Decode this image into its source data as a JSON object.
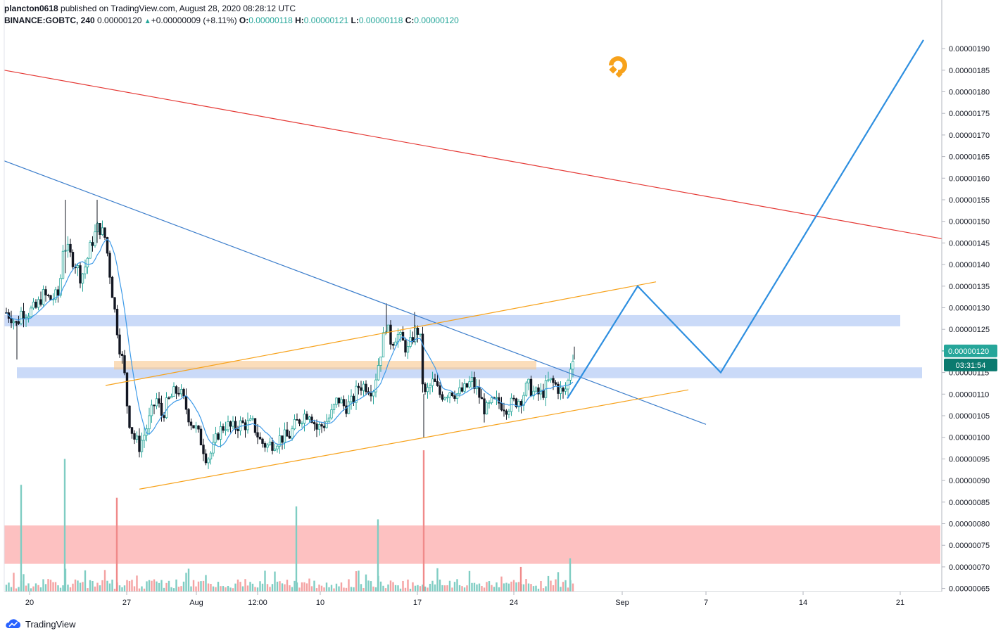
{
  "header": {
    "publisher": "plancton0618",
    "published_text": "published on TradingView.com, August 28, 2020 08:28:12 UTC",
    "symbol": "BINANCE:GOBTC, 240",
    "last": "0.00000120",
    "change": "+0.00000009 (+8.11%)",
    "o_label": "O:",
    "o_value": "0.00000118",
    "h_label": "H:",
    "h_value": "0.00000121",
    "l_label": "L:",
    "l_value": "0.00000118",
    "c_label": "C:",
    "c_value": "0.00000120"
  },
  "price_badge": {
    "value": "0.00000120",
    "countdown": "03:31:54"
  },
  "branding": {
    "label": "TradingView"
  },
  "colors": {
    "up": "#26a69a",
    "down": "#131722",
    "ma": "#3d9ae8",
    "red_trend": "#e53935",
    "blue_trend": "#3b7dcb",
    "orange": "#f7a21b",
    "projection": "#2e8fe0",
    "zone_blue": "#aac4f3",
    "zone_orange": "#f8c890",
    "zone_red": "#fc9b9b"
  },
  "chart_data": {
    "type": "candlestick",
    "y_axis": {
      "ticks": [
        "0.00000190",
        "0.00000185",
        "0.00000180",
        "0.00000175",
        "0.00000170",
        "0.00000165",
        "0.00000160",
        "0.00000155",
        "0.00000150",
        "0.00000145",
        "0.00000140",
        "0.00000135",
        "0.00000130",
        "0.00000125",
        "0.00000120",
        "0.00000115",
        "0.00000110",
        "0.00000105",
        "0.00000100",
        "0.00000095",
        "0.00000090",
        "0.00000085",
        "0.00000080",
        "0.00000075",
        "0.00000070",
        "0.00000065"
      ],
      "range": [
        6.3e-07,
        1.93e-06
      ]
    },
    "x_axis": {
      "ticks": [
        "20",
        "27",
        "Aug",
        "12:00",
        "10",
        "17",
        "24",
        "Sep",
        "7",
        "14",
        "21"
      ]
    },
    "price_path": [
      [
        0,
        1.3
      ],
      [
        8,
        1.29
      ],
      [
        16,
        1.28
      ],
      [
        24,
        1.26
      ],
      [
        30,
        1.29
      ],
      [
        40,
        1.29
      ],
      [
        52,
        1.3
      ],
      [
        60,
        1.33
      ],
      [
        72,
        1.32
      ],
      [
        84,
        1.33
      ],
      [
        90,
        1.45
      ],
      [
        100,
        1.42
      ],
      [
        108,
        1.4
      ],
      [
        115,
        1.37
      ],
      [
        122,
        1.4
      ],
      [
        130,
        1.45
      ],
      [
        140,
        1.49
      ],
      [
        150,
        1.46
      ],
      [
        156,
        1.38
      ],
      [
        164,
        1.28
      ],
      [
        170,
        1.21
      ],
      [
        176,
        1.16
      ],
      [
        182,
        1.05
      ],
      [
        190,
        1.0
      ],
      [
        198,
        0.98
      ],
      [
        206,
        1.01
      ],
      [
        214,
        1.05
      ],
      [
        222,
        1.09
      ],
      [
        230,
        1.05
      ],
      [
        238,
        1.08
      ],
      [
        246,
        1.1
      ],
      [
        254,
        1.11
      ],
      [
        262,
        1.08
      ],
      [
        270,
        1.04
      ],
      [
        278,
        1.02
      ],
      [
        286,
        0.99
      ],
      [
        294,
        0.95
      ],
      [
        302,
        0.97
      ],
      [
        310,
        1.01
      ],
      [
        320,
        1.03
      ],
      [
        330,
        1.02
      ],
      [
        340,
        1.03
      ],
      [
        350,
        1.03
      ],
      [
        360,
        1.03
      ],
      [
        370,
        0.99
      ],
      [
        380,
        0.98
      ],
      [
        390,
        0.99
      ],
      [
        400,
        1.0
      ],
      [
        410,
        1.0
      ],
      [
        420,
        1.03
      ],
      [
        430,
        1.05
      ],
      [
        440,
        1.06
      ],
      [
        450,
        1.02
      ],
      [
        460,
        1.03
      ],
      [
        470,
        1.05
      ],
      [
        480,
        1.09
      ],
      [
        490,
        1.07
      ],
      [
        500,
        1.08
      ],
      [
        510,
        1.12
      ],
      [
        520,
        1.12
      ],
      [
        530,
        1.11
      ],
      [
        540,
        1.19
      ],
      [
        548,
        1.26
      ],
      [
        556,
        1.22
      ],
      [
        564,
        1.24
      ],
      [
        572,
        1.22
      ],
      [
        580,
        1.2
      ],
      [
        588,
        1.24
      ],
      [
        596,
        1.25
      ],
      [
        602,
        1.09
      ],
      [
        608,
        1.11
      ],
      [
        616,
        1.13
      ],
      [
        624,
        1.1
      ],
      [
        632,
        1.1
      ],
      [
        640,
        1.11
      ],
      [
        650,
        1.1
      ],
      [
        660,
        1.11
      ],
      [
        670,
        1.13
      ],
      [
        680,
        1.1
      ],
      [
        690,
        1.06
      ],
      [
        700,
        1.08
      ],
      [
        710,
        1.08
      ],
      [
        720,
        1.07
      ],
      [
        730,
        1.08
      ],
      [
        740,
        1.09
      ],
      [
        750,
        1.12
      ],
      [
        760,
        1.1
      ],
      [
        770,
        1.1
      ],
      [
        780,
        1.13
      ],
      [
        790,
        1.12
      ],
      [
        800,
        1.1
      ],
      [
        806,
        1.12
      ],
      [
        812,
        1.18
      ],
      [
        816,
        1.2
      ]
    ],
    "volume_spikes": [
      [
        30,
        8.9e-07
      ],
      [
        92,
        9.5e-07
      ],
      [
        166,
        8.6e-07
      ],
      [
        421,
        8.4e-07
      ],
      [
        537,
        8.1e-07
      ],
      [
        602,
        9.7e-07
      ],
      [
        740,
        7e-07
      ],
      [
        810,
        7.2e-07
      ]
    ],
    "lines": {
      "red_trend": [
        [
          6,
          1.85
        ],
        [
          1338,
          1.46
        ]
      ],
      "blue_trend": [
        [
          6,
          1.64
        ],
        [
          1003,
          1.03
        ]
      ],
      "orange_upper": [
        [
          150,
          1.12
        ],
        [
          932,
          1.36
        ]
      ],
      "orange_lower": [
        [
          198,
          0.88
        ],
        [
          978,
          1.11
        ]
      ],
      "projection": [
        [
          806,
          1.09
        ],
        [
          906,
          1.35
        ],
        [
          1024,
          1.15
        ],
        [
          1312,
          1.92
        ]
      ]
    },
    "zones": [
      {
        "name": "resistance-zone-upper",
        "x": [
          6,
          1279
        ],
        "y": [
          1.257,
          1.283
        ],
        "color": "#aac4f3"
      },
      {
        "name": "resistance-zone-lower",
        "x": [
          24,
          1310
        ],
        "y": [
          1.137,
          1.162
        ],
        "color": "#aac4f3"
      },
      {
        "name": "orange-zone",
        "x": [
          162,
          762
        ],
        "y": [
          1.157,
          1.177
        ],
        "color": "#f8c890"
      },
      {
        "name": "red-volume-zone",
        "x": [
          6,
          1336
        ],
        "y": [
          0.707,
          0.796
        ],
        "color": "#fc9b9b"
      }
    ]
  }
}
